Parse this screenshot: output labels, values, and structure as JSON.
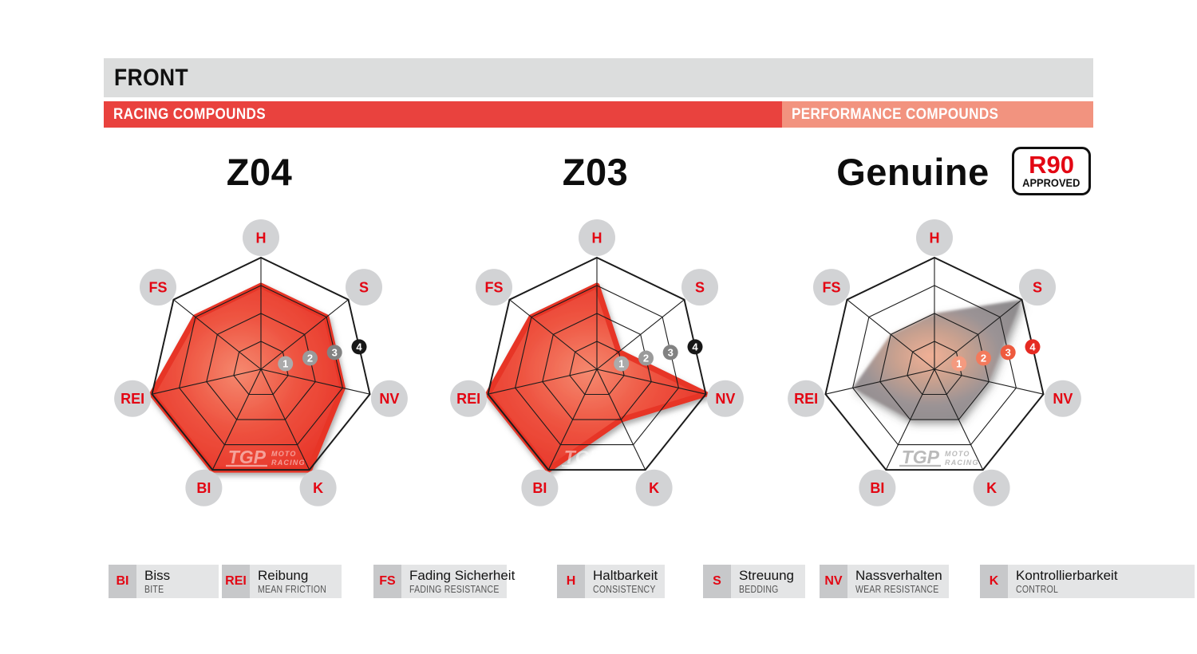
{
  "header": {
    "title": "FRONT",
    "racing_label": "RACING COMPOUNDS",
    "performance_label": "PERFORMANCE COMPOUNDS"
  },
  "charts": [
    {
      "id": "z04",
      "title": "Z04",
      "group": "racing"
    },
    {
      "id": "z03",
      "title": "Z03",
      "group": "racing"
    },
    {
      "id": "genuine",
      "title": "Genuine",
      "group": "performance"
    }
  ],
  "genuine_badge": {
    "top": "R90",
    "bottom": "APPROVED"
  },
  "chart_data": {
    "type": "radar",
    "categories": [
      "H",
      "S",
      "NV",
      "K",
      "BI",
      "REI",
      "FS"
    ],
    "axis_order": "clockwise from top",
    "rings": 4,
    "scale": {
      "min": 0,
      "max": 4,
      "markers": [
        "1",
        "2",
        "3",
        "4"
      ]
    },
    "series": [
      {
        "name": "Z04",
        "values": [
          3,
          3,
          3,
          4,
          4,
          4,
          3
        ]
      },
      {
        "name": "Z03",
        "values": [
          3,
          1,
          4,
          2,
          4,
          4,
          3
        ]
      },
      {
        "name": "Genuine",
        "values": [
          2,
          4,
          2,
          2,
          2,
          3,
          2
        ]
      }
    ]
  },
  "watermark": {
    "main": "TGP",
    "sub_top": "MOTO",
    "sub_bottom": "RACING"
  },
  "legend": [
    {
      "abbr": "BI",
      "de": "Biss",
      "en": "BITE"
    },
    {
      "abbr": "REI",
      "de": "Reibung",
      "en": "MEAN FRICTION"
    },
    {
      "abbr": "FS",
      "de": "Fading Sicherheit",
      "en": "FADING RESISTANCE"
    },
    {
      "abbr": "H",
      "de": "Haltbarkeit",
      "en": "CONSISTENCY"
    },
    {
      "abbr": "S",
      "de": "Streuung",
      "en": "BEDDING"
    },
    {
      "abbr": "NV",
      "de": "Nassverhalten",
      "en": "WEAR RESISTANCE"
    },
    {
      "abbr": "K",
      "de": "Kontrollierbarkeit",
      "en": "CONTROL"
    }
  ],
  "colors": {
    "header_bar": "#dcdddd",
    "racing_red": "#e9423e",
    "performance_salmon": "#f2937f",
    "band_text": "#ffffff",
    "label_red": "#e30613",
    "grid": "#1c1c1c",
    "label_circle": "#d2d3d5",
    "racing_markers": [
      "#ababab",
      "#9a9a9a",
      "#828282",
      "#171717"
    ],
    "performance_markers": [
      "#f49a7f",
      "#f37a5c",
      "#ee5a3e",
      "#e52a22"
    ],
    "racing_gradient": [
      "#f5896f",
      "#ee5340",
      "#e73428"
    ],
    "performance_gradient": [
      "#f1b096",
      "#c9a18f",
      "#9b9395",
      "#8e8b8d"
    ],
    "racing_watermark": "rgba(255,255,255,0.5)",
    "performance_watermark": "rgba(140,140,140,0.6)",
    "legend_square": "#c7c8ca",
    "legend_panel": "#e4e5e6"
  }
}
